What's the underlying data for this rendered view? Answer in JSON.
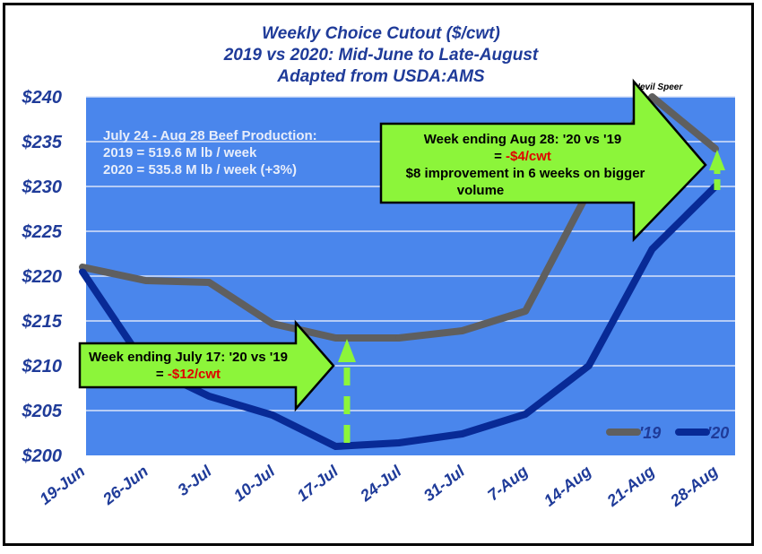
{
  "chart_data": {
    "type": "line",
    "title_lines": [
      "Weekly Choice Cutout ($/cwt)",
      "2019 vs 2020: Mid-June to Late-August",
      "Adapted from USDA:AMS"
    ],
    "credit": "Nevil Speer",
    "categories": [
      "19-Jun",
      "26-Jun",
      "3-Jul",
      "10-Jul",
      "17-Jul",
      "24-Jul",
      "31-Jul",
      "7-Aug",
      "14-Aug",
      "21-Aug",
      "28-Aug"
    ],
    "y_ticks": [
      "$200",
      "$205",
      "$210",
      "$215",
      "$220",
      "$225",
      "$230",
      "$235",
      "$240"
    ],
    "ylim": [
      200,
      240
    ],
    "grid": true,
    "legend_position": "bottom-right",
    "series": [
      {
        "name": "'19",
        "color": "#5f5f5f",
        "values": [
          221.0,
          219.5,
          219.3,
          214.7,
          213.1,
          213.1,
          213.9,
          216.1,
          229.5,
          240.0,
          234.2
        ]
      },
      {
        "name": "'20",
        "color": "#082a96",
        "values": [
          220.5,
          210.0,
          206.6,
          204.5,
          201.0,
          201.4,
          202.4,
          204.6,
          210.0,
          223.0,
          230.0
        ]
      }
    ],
    "notes": {
      "production": [
        "July 24 - Aug 28 Beef Production:",
        "2019 = 519.6 M lb / week",
        "2020 = 535.8 M lb / week (+3%)"
      ],
      "callout_july": {
        "line1": "Week ending July 17:  '20 vs '19",
        "eq": "= ",
        "value": "-$12/cwt"
      },
      "callout_aug": {
        "line1": "Week ending Aug 28:  '20 vs '19",
        "eq": "= ",
        "value": "-$4/cwt",
        "line3": "$8 improvement in 6 weeks on bigger",
        "line4": "volume"
      }
    },
    "colors": {
      "plot_bg": "#4a86ec",
      "arrow_fill": "#8cf53a",
      "title": "#1f3b99"
    }
  }
}
